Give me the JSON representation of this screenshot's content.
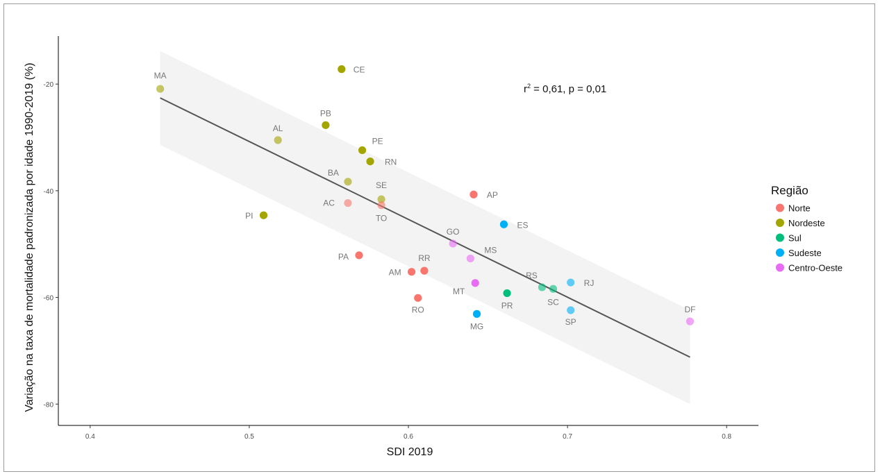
{
  "chart_data": {
    "type": "scatter",
    "xlabel": "SDI 2019",
    "ylabel": "Variação na taxa de mortalidade padronizada por idade 1990-2019 (%)",
    "xlim": [
      0.38,
      0.82
    ],
    "ylim": [
      -84,
      -11
    ],
    "x_ticks": [
      0.4,
      0.5,
      0.6,
      0.7,
      0.8
    ],
    "x_tick_labels": [
      "0.4",
      "0.5",
      "0.6",
      "0.7",
      "0.8"
    ],
    "y_ticks": [
      -20,
      -40,
      -60,
      -80
    ],
    "y_tick_labels": [
      "-20",
      "-40",
      "-60",
      "-80"
    ],
    "grid": false,
    "legend": {
      "title": "Região",
      "position": "right",
      "entries": [
        {
          "name": "Norte",
          "color": "#F8766D"
        },
        {
          "name": "Nordeste",
          "color": "#A3A500"
        },
        {
          "name": "Sul",
          "color": "#00BF7D"
        },
        {
          "name": "Sudeste",
          "color": "#00B0F6"
        },
        {
          "name": "Centro-Oeste",
          "color": "#E76BF3"
        }
      ]
    },
    "annotation": {
      "prefix": "r",
      "sup": "2",
      "suffix": " = 0,61, p = 0,01"
    },
    "regression": {
      "x": [
        0.444,
        0.777
      ],
      "y": [
        -22.6,
        -71.2
      ],
      "ci_lower": [
        -31.4,
        -80.0
      ],
      "ci_upper": [
        -13.8,
        -62.4
      ],
      "color": "#555555"
    },
    "points": [
      {
        "label": "MA",
        "x": 0.444,
        "y": -20.9,
        "region": "Nordeste",
        "alpha": 0.6
      },
      {
        "label": "CE",
        "x": 0.558,
        "y": -17.2,
        "region": "Nordeste",
        "alpha": 1
      },
      {
        "label": "PB",
        "x": 0.548,
        "y": -27.7,
        "region": "Nordeste",
        "alpha": 1
      },
      {
        "label": "AL",
        "x": 0.518,
        "y": -30.5,
        "region": "Nordeste",
        "alpha": 0.6
      },
      {
        "label": "PE",
        "x": 0.571,
        "y": -32.4,
        "region": "Nordeste",
        "alpha": 1
      },
      {
        "label": "RN",
        "x": 0.576,
        "y": -34.5,
        "region": "Nordeste",
        "alpha": 1
      },
      {
        "label": "BA",
        "x": 0.562,
        "y": -38.3,
        "region": "Nordeste",
        "alpha": 0.6
      },
      {
        "label": "SE",
        "x": 0.583,
        "y": -41.6,
        "region": "Nordeste",
        "alpha": 0.6
      },
      {
        "label": "PI",
        "x": 0.509,
        "y": -44.6,
        "region": "Nordeste",
        "alpha": 1
      },
      {
        "label": "AC",
        "x": 0.562,
        "y": -42.3,
        "region": "Norte",
        "alpha": 0.6
      },
      {
        "label": "TO",
        "x": 0.583,
        "y": -42.7,
        "region": "Norte",
        "alpha": 0.6
      },
      {
        "label": "AP",
        "x": 0.641,
        "y": -40.7,
        "region": "Norte",
        "alpha": 1
      },
      {
        "label": "PA",
        "x": 0.569,
        "y": -52.1,
        "region": "Norte",
        "alpha": 1
      },
      {
        "label": "RR",
        "x": 0.61,
        "y": -55.0,
        "region": "Norte",
        "alpha": 1
      },
      {
        "label": "AM",
        "x": 0.602,
        "y": -55.2,
        "region": "Norte",
        "alpha": 1
      },
      {
        "label": "RO",
        "x": 0.606,
        "y": -60.1,
        "region": "Norte",
        "alpha": 1
      },
      {
        "label": "ES",
        "x": 0.66,
        "y": -46.3,
        "region": "Sudeste",
        "alpha": 1
      },
      {
        "label": "MG",
        "x": 0.643,
        "y": -63.1,
        "region": "Sudeste",
        "alpha": 1
      },
      {
        "label": "RJ",
        "x": 0.702,
        "y": -57.2,
        "region": "Sudeste",
        "alpha": 0.6
      },
      {
        "label": "SP",
        "x": 0.702,
        "y": -62.4,
        "region": "Sudeste",
        "alpha": 0.6
      },
      {
        "label": "RS",
        "x": 0.684,
        "y": -58.1,
        "region": "Sul",
        "alpha": 0.6
      },
      {
        "label": "SC",
        "x": 0.691,
        "y": -58.4,
        "region": "Sul",
        "alpha": 0.6
      },
      {
        "label": "PR",
        "x": 0.662,
        "y": -59.2,
        "region": "Sul",
        "alpha": 1
      },
      {
        "label": "GO",
        "x": 0.628,
        "y": -49.9,
        "region": "Centro-Oeste",
        "alpha": 0.6
      },
      {
        "label": "MS",
        "x": 0.639,
        "y": -52.7,
        "region": "Centro-Oeste",
        "alpha": 0.6
      },
      {
        "label": "MT",
        "x": 0.642,
        "y": -57.3,
        "region": "Centro-Oeste",
        "alpha": 1
      },
      {
        "label": "DF",
        "x": 0.777,
        "y": -64.5,
        "region": "Centro-Oeste",
        "alpha": 0.6
      }
    ]
  }
}
